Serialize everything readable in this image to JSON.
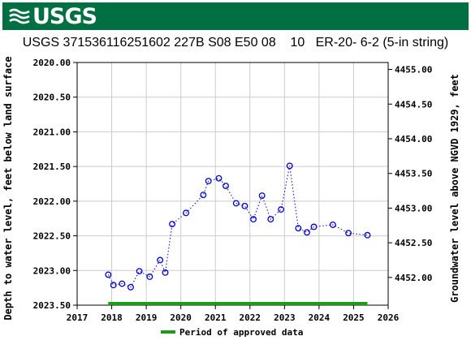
{
  "header": {
    "logo_text": "USGS"
  },
  "chart_data": {
    "type": "scatter",
    "title": "USGS 371536116251602 227B S08 E50 08    10   ER-20- 6-2 (5-in string)",
    "ylabel_left": "Depth to water level, feet below land surface",
    "ylabel_right": "Groundwater level above NGVD 1929, feet",
    "xlim": [
      2017,
      2026
    ],
    "ylim_left": [
      2020.0,
      2023.5
    ],
    "ylim_right": [
      4451.6,
      4455.1
    ],
    "left_reversed": true,
    "x_ticks": [
      "2017",
      "2018",
      "2019",
      "2020",
      "2021",
      "2022",
      "2023",
      "2024",
      "2025",
      "2026"
    ],
    "y_left_ticks": [
      "2020.00",
      "2020.50",
      "2021.00",
      "2021.50",
      "2022.00",
      "2022.50",
      "2023.00",
      "2023.50"
    ],
    "y_right_ticks": [
      "4455.00",
      "4454.50",
      "4454.00",
      "4453.50",
      "4453.00",
      "4452.50",
      "4452.00"
    ],
    "series": [
      {
        "x": [
          2017.9,
          2018.05,
          2018.3,
          2018.55,
          2018.8,
          2019.1,
          2019.4,
          2019.55,
          2019.75,
          2020.15,
          2020.65,
          2020.8,
          2021.1,
          2021.3,
          2021.6,
          2021.85,
          2022.1,
          2022.35,
          2022.6,
          2022.9,
          2023.15,
          2023.4,
          2023.65,
          2023.85,
          2024.4,
          2024.85,
          2025.4
        ],
        "y": [
          2023.06,
          2023.21,
          2023.19,
          2023.24,
          2023.01,
          2023.09,
          2022.85,
          2023.03,
          2022.33,
          2022.17,
          2021.91,
          2021.71,
          2021.67,
          2021.78,
          2022.03,
          2022.07,
          2022.26,
          2021.92,
          2022.26,
          2022.12,
          2021.49,
          2022.39,
          2022.45,
          2022.37,
          2022.34,
          2022.46,
          2022.49
        ]
      }
    ],
    "approved_period": [
      2017.9,
      2025.4
    ],
    "legend": "Period of approved data",
    "marker_color": "#0000cc",
    "approved_color": "#1a9e1a",
    "grid": true
  }
}
